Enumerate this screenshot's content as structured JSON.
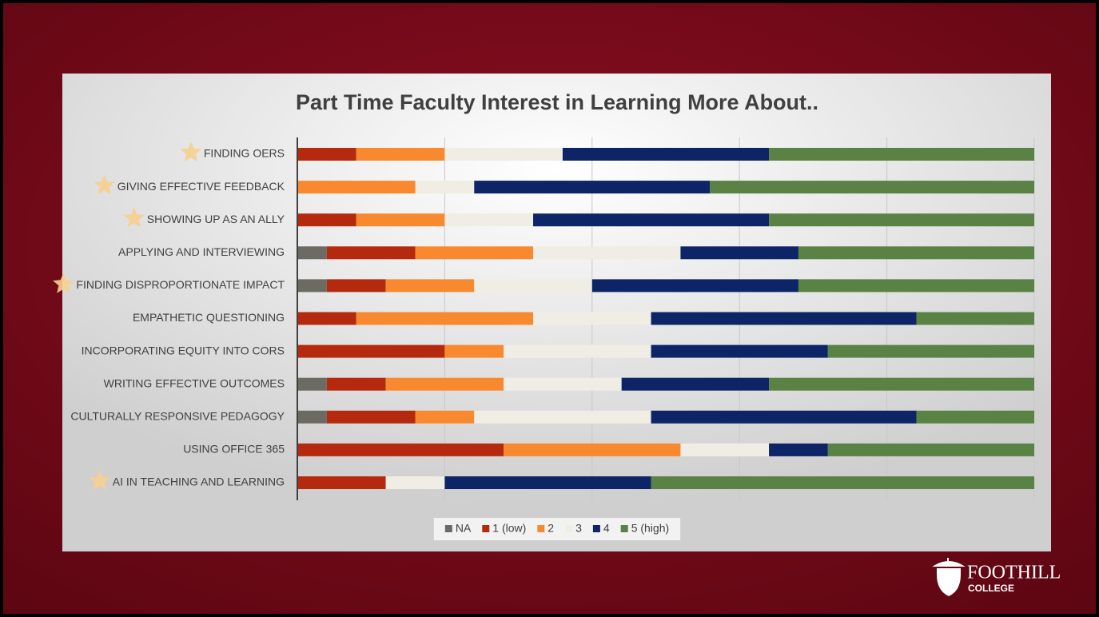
{
  "chart_data": {
    "type": "stacked_barh",
    "title": "Part Time Faculty Interest in Learning More About..",
    "categories": [
      "FINDING OERS",
      "GIVING EFFECTIVE FEEDBACK",
      "SHOWING UP AS AN ALLY",
      "APPLYING AND INTERVIEWING",
      "FINDING DISPROPORTIONATE IMPACT",
      "EMPATHETIC QUESTIONING",
      "INCORPORATING EQUITY INTO CORS",
      "WRITING EFFECTIVE OUTCOMES",
      "CULTURALLY RESPONSIVE PEDAGOGY",
      "USING OFFICE 365",
      "AI IN TEACHING AND LEARNING"
    ],
    "starred": [
      true,
      true,
      true,
      false,
      true,
      false,
      false,
      false,
      false,
      false,
      true
    ],
    "series": [
      {
        "name": "NA",
        "color": "#6b6b63",
        "values": [
          0,
          0,
          0,
          4,
          4,
          0,
          0,
          4,
          4,
          0,
          0
        ]
      },
      {
        "name": "1 (low)",
        "color": "#b52a0e",
        "values": [
          8,
          0,
          8,
          12,
          8,
          8,
          20,
          8,
          12,
          28,
          12
        ]
      },
      {
        "name": "2",
        "color": "#f9892e",
        "values": [
          12,
          16,
          12,
          16,
          12,
          24,
          8,
          16,
          8,
          24,
          0
        ]
      },
      {
        "name": "3",
        "color": "#efede4",
        "values": [
          16,
          8,
          12,
          20,
          16,
          16,
          20,
          16,
          24,
          12,
          8
        ]
      },
      {
        "name": "4",
        "color": "#0d2566",
        "values": [
          28,
          32,
          32,
          16,
          28,
          36,
          24,
          20,
          36,
          8,
          28
        ]
      },
      {
        "name": "5 (high)",
        "color": "#5a8245",
        "values": [
          36,
          44,
          36,
          32,
          32,
          16,
          28,
          36,
          16,
          28,
          52
        ]
      }
    ],
    "xlim": [
      0,
      100
    ],
    "xticks": [
      0,
      20,
      40,
      60,
      80,
      100
    ],
    "grid": true,
    "legend": "bottom"
  },
  "logo": {
    "name": "FOOTHILL",
    "sub": "COLLEGE"
  }
}
